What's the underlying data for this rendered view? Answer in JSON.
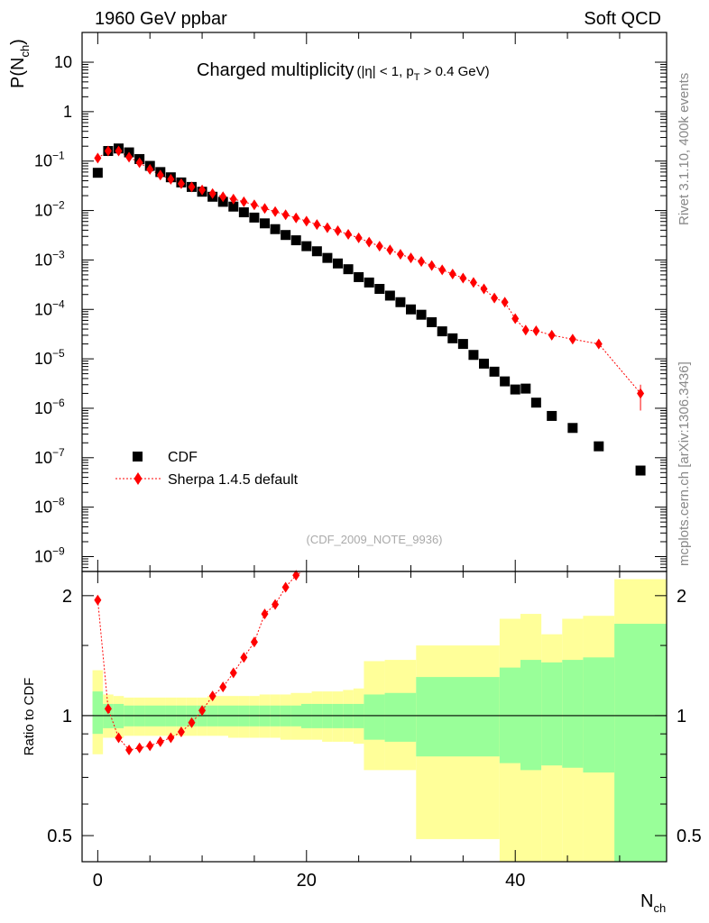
{
  "chart_data": [
    {
      "type": "scatter",
      "panel": "main",
      "header_left": "1960 GeV ppbar",
      "header_right": "Soft QCD",
      "title_main": "Charged multiplicity",
      "title_cut_a": "(|η| < 1, p",
      "title_cut_sub": "T",
      "title_cut_b": " > 0.4 GeV)",
      "ylabel_main": "P(N",
      "ylabel_sub": "ch",
      "ylabel_close": ")",
      "yscale": "log",
      "xlim": [
        -1.5,
        54.5
      ],
      "ylim": [
        5e-10,
        40
      ],
      "y_ticks": [
        {
          "v": 10,
          "label": "10"
        },
        {
          "v": 1,
          "label": "1"
        },
        {
          "v": 0.1,
          "label": "10",
          "exp": "−1"
        },
        {
          "v": 0.01,
          "label": "10",
          "exp": "−2"
        },
        {
          "v": 0.001,
          "label": "10",
          "exp": "−3"
        },
        {
          "v": 0.0001,
          "label": "10",
          "exp": "−4"
        },
        {
          "v": 1e-05,
          "label": "10",
          "exp": "−5"
        },
        {
          "v": 1e-06,
          "label": "10",
          "exp": "−6"
        },
        {
          "v": 1e-07,
          "label": "10",
          "exp": "−7"
        },
        {
          "v": 1e-08,
          "label": "10",
          "exp": "−8"
        },
        {
          "v": 1e-09,
          "label": "10",
          "exp": "−9"
        }
      ],
      "legend_position": "bottom-left",
      "annotation": "(CDF_2009_NOTE_9936)",
      "side_label_top": "Rivet 3.1.10,  400k events",
      "side_label_bottom": "mcplots.cern.ch [arXiv:1306.3436]",
      "series": [
        {
          "name": "CDF",
          "marker": "square",
          "color": "#000000",
          "x": [
            0,
            1,
            2,
            3,
            4,
            5,
            6,
            7,
            8,
            9,
            10,
            11,
            12,
            13,
            14,
            15,
            16,
            17,
            18,
            19,
            20,
            21,
            22,
            23,
            24,
            25,
            26,
            27,
            28,
            29,
            30,
            31,
            32,
            33,
            34,
            35,
            36,
            37,
            38,
            39,
            40,
            41,
            42,
            43.5,
            45.5,
            48,
            52
          ],
          "y": [
            0.058,
            0.16,
            0.18,
            0.15,
            0.11,
            0.08,
            0.06,
            0.047,
            0.037,
            0.03,
            0.024,
            0.019,
            0.015,
            0.012,
            0.0092,
            0.0072,
            0.0055,
            0.0042,
            0.0032,
            0.0025,
            0.0019,
            0.0015,
            0.0011,
            0.00085,
            0.00065,
            0.00045,
            0.00035,
            0.00026,
            0.00019,
            0.00014,
            0.0001,
            7.8e-05,
            5.5e-05,
            3.6e-05,
            2.6e-05,
            2e-05,
            1.2e-05,
            8e-06,
            5.5e-06,
            3.5e-06,
            2.4e-06,
            2.5e-06,
            1.3e-06,
            7e-07,
            4e-07,
            1.7e-07,
            5.5e-08
          ]
        },
        {
          "name": "Sherpa 1.4.5 default",
          "marker": "diamond",
          "line": "dotted",
          "color": "#ff0000",
          "x": [
            0,
            1,
            2,
            3,
            4,
            5,
            6,
            7,
            8,
            9,
            10,
            11,
            12,
            13,
            14,
            15,
            16,
            17,
            18,
            19,
            20,
            21,
            22,
            23,
            24,
            25,
            26,
            27,
            28,
            29,
            30,
            31,
            32,
            33,
            34,
            35,
            36,
            37,
            38,
            39,
            40,
            41,
            42,
            43.5,
            45.5,
            48,
            52
          ],
          "y": [
            0.115,
            0.16,
            0.16,
            0.12,
            0.093,
            0.068,
            0.052,
            0.043,
            0.035,
            0.03,
            0.026,
            0.022,
            0.019,
            0.017,
            0.015,
            0.013,
            0.011,
            0.0095,
            0.0082,
            0.0071,
            0.0061,
            0.0052,
            0.0045,
            0.0039,
            0.0033,
            0.0028,
            0.0023,
            0.0019,
            0.0016,
            0.0013,
            0.0011,
            0.00093,
            0.00077,
            0.00063,
            0.00052,
            0.00043,
            0.00035,
            0.00026,
            0.00017,
            0.00014,
            6.5e-05,
            3.8e-05,
            3.7e-05,
            3e-05,
            2.5e-05,
            2e-05,
            2e-06
          ]
        }
      ]
    },
    {
      "type": "scatter",
      "panel": "ratio",
      "ylabel": "Ratio to CDF",
      "xlabel_main": "N",
      "xlabel_sub": "ch",
      "xlim": [
        -1.5,
        54.5
      ],
      "ylim": [
        0.43,
        2.3
      ],
      "yscale": "log",
      "y_ticks": [
        {
          "v": 0.5,
          "label": "0.5"
        },
        {
          "v": 1,
          "label": "1"
        },
        {
          "v": 2,
          "label": "2"
        }
      ],
      "x_ticks": [
        {
          "v": 0,
          "label": "0"
        },
        {
          "v": 20,
          "label": "20"
        },
        {
          "v": 40,
          "label": "40"
        }
      ],
      "reference_line": 1,
      "bands": {
        "colors": {
          "outer": "#ffff99",
          "inner": "#99ff99"
        },
        "bins": [
          {
            "x0": -0.5,
            "x1": 0.5,
            "outer": [
              0.8,
              1.3
            ],
            "inner": [
              0.9,
              1.15
            ]
          },
          {
            "x0": 0.5,
            "x1": 1.5,
            "outer": [
              0.88,
              1.13
            ],
            "inner": [
              0.93,
              1.07
            ]
          },
          {
            "x0": 1.5,
            "x1": 2.5,
            "outer": [
              0.88,
              1.12
            ],
            "inner": [
              0.93,
              1.07
            ]
          },
          {
            "x0": 2.5,
            "x1": 3.5,
            "outer": [
              0.89,
              1.11
            ],
            "inner": [
              0.94,
              1.06
            ]
          },
          {
            "x0": 3.5,
            "x1": 4.5,
            "outer": [
              0.89,
              1.11
            ],
            "inner": [
              0.94,
              1.06
            ]
          },
          {
            "x0": 4.5,
            "x1": 5.5,
            "outer": [
              0.89,
              1.11
            ],
            "inner": [
              0.94,
              1.06
            ]
          },
          {
            "x0": 5.5,
            "x1": 6.5,
            "outer": [
              0.89,
              1.11
            ],
            "inner": [
              0.94,
              1.06
            ]
          },
          {
            "x0": 6.5,
            "x1": 7.5,
            "outer": [
              0.89,
              1.11
            ],
            "inner": [
              0.94,
              1.06
            ]
          },
          {
            "x0": 7.5,
            "x1": 8.5,
            "outer": [
              0.89,
              1.11
            ],
            "inner": [
              0.94,
              1.06
            ]
          },
          {
            "x0": 8.5,
            "x1": 9.5,
            "outer": [
              0.89,
              1.11
            ],
            "inner": [
              0.94,
              1.06
            ]
          },
          {
            "x0": 9.5,
            "x1": 10.5,
            "outer": [
              0.89,
              1.11
            ],
            "inner": [
              0.94,
              1.06
            ]
          },
          {
            "x0": 10.5,
            "x1": 11.5,
            "outer": [
              0.89,
              1.12
            ],
            "inner": [
              0.94,
              1.06
            ]
          },
          {
            "x0": 11.5,
            "x1": 12.5,
            "outer": [
              0.89,
              1.12
            ],
            "inner": [
              0.94,
              1.06
            ]
          },
          {
            "x0": 12.5,
            "x1": 13.5,
            "outer": [
              0.88,
              1.12
            ],
            "inner": [
              0.94,
              1.06
            ]
          },
          {
            "x0": 13.5,
            "x1": 14.5,
            "outer": [
              0.88,
              1.12
            ],
            "inner": [
              0.94,
              1.06
            ]
          },
          {
            "x0": 14.5,
            "x1": 15.5,
            "outer": [
              0.88,
              1.12
            ],
            "inner": [
              0.94,
              1.06
            ]
          },
          {
            "x0": 15.5,
            "x1": 16.5,
            "outer": [
              0.88,
              1.13
            ],
            "inner": [
              0.94,
              1.06
            ]
          },
          {
            "x0": 16.5,
            "x1": 17.5,
            "outer": [
              0.88,
              1.13
            ],
            "inner": [
              0.94,
              1.06
            ]
          },
          {
            "x0": 17.5,
            "x1": 18.5,
            "outer": [
              0.87,
              1.13
            ],
            "inner": [
              0.94,
              1.06
            ]
          },
          {
            "x0": 18.5,
            "x1": 19.5,
            "outer": [
              0.87,
              1.14
            ],
            "inner": [
              0.94,
              1.06
            ]
          },
          {
            "x0": 19.5,
            "x1": 20.5,
            "outer": [
              0.87,
              1.14
            ],
            "inner": [
              0.93,
              1.07
            ]
          },
          {
            "x0": 20.5,
            "x1": 21.5,
            "outer": [
              0.87,
              1.15
            ],
            "inner": [
              0.93,
              1.07
            ]
          },
          {
            "x0": 21.5,
            "x1": 22.5,
            "outer": [
              0.86,
              1.15
            ],
            "inner": [
              0.93,
              1.07
            ]
          },
          {
            "x0": 22.5,
            "x1": 23.5,
            "outer": [
              0.86,
              1.15
            ],
            "inner": [
              0.93,
              1.07
            ]
          },
          {
            "x0": 23.5,
            "x1": 24.5,
            "outer": [
              0.86,
              1.16
            ],
            "inner": [
              0.93,
              1.07
            ]
          },
          {
            "x0": 24.5,
            "x1": 25.5,
            "outer": [
              0.85,
              1.17
            ],
            "inner": [
              0.93,
              1.07
            ]
          },
          {
            "x0": 25.5,
            "x1": 27.5,
            "outer": [
              0.73,
              1.37
            ],
            "inner": [
              0.87,
              1.13
            ]
          },
          {
            "x0": 27.5,
            "x1": 30.5,
            "outer": [
              0.73,
              1.38
            ],
            "inner": [
              0.86,
              1.14
            ]
          },
          {
            "x0": 30.5,
            "x1": 38.5,
            "outer": [
              0.49,
              1.5
            ],
            "inner": [
              0.79,
              1.25
            ]
          },
          {
            "x0": 38.5,
            "x1": 40.5,
            "outer": [
              0.4,
              1.75
            ],
            "inner": [
              0.76,
              1.32
            ]
          },
          {
            "x0": 40.5,
            "x1": 42.5,
            "outer": [
              0.4,
              1.8
            ],
            "inner": [
              0.73,
              1.38
            ]
          },
          {
            "x0": 42.5,
            "x1": 44.5,
            "outer": [
              0.4,
              1.6
            ],
            "inner": [
              0.75,
              1.36
            ]
          },
          {
            "x0": 44.5,
            "x1": 46.5,
            "outer": [
              0.4,
              1.75
            ],
            "inner": [
              0.74,
              1.38
            ]
          },
          {
            "x0": 46.5,
            "x1": 49.5,
            "outer": [
              0.4,
              1.78
            ],
            "inner": [
              0.72,
              1.4
            ]
          },
          {
            "x0": 49.5,
            "x1": 54.5,
            "outer": [
              0.4,
              2.2
            ],
            "inner": [
              0.4,
              1.7
            ]
          }
        ]
      },
      "series": [
        {
          "name": "Sherpa 1.4.5 default / CDF",
          "marker": "diamond",
          "line": "dotted",
          "color": "#ff0000",
          "x": [
            0,
            1,
            2,
            3,
            4,
            5,
            6,
            7,
            8,
            9,
            10,
            11,
            12,
            13,
            14,
            15,
            16,
            17,
            18,
            19
          ],
          "y": [
            1.95,
            1.04,
            0.88,
            0.82,
            0.83,
            0.84,
            0.86,
            0.88,
            0.91,
            0.96,
            1.03,
            1.12,
            1.18,
            1.28,
            1.4,
            1.53,
            1.8,
            1.9,
            2.1,
            2.25
          ]
        }
      ]
    }
  ]
}
